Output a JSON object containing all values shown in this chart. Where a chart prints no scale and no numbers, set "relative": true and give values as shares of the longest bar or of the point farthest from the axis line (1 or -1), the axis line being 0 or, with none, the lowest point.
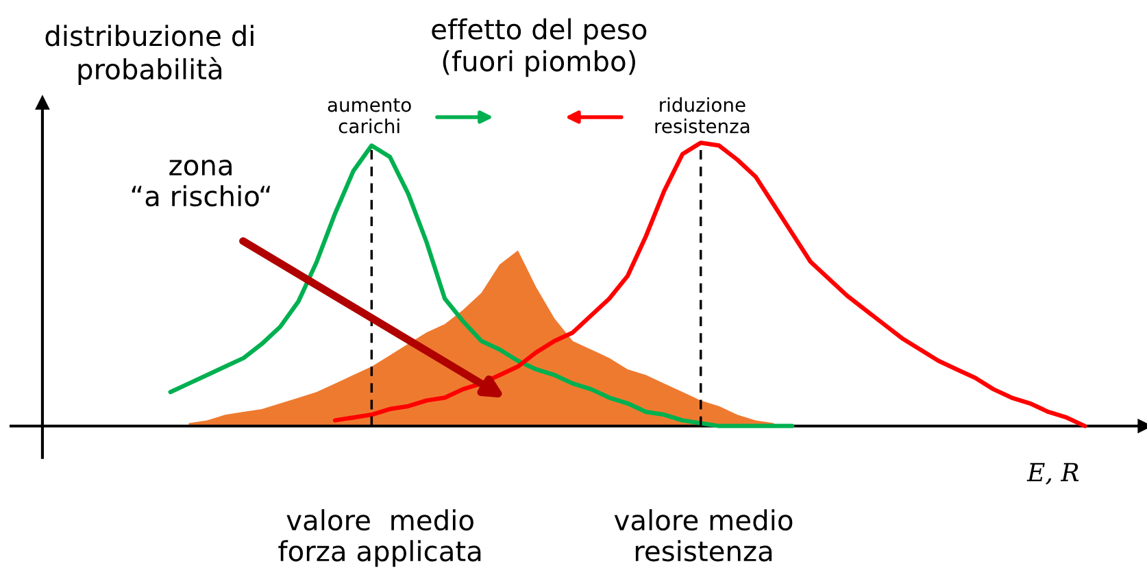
{
  "chart_data": {
    "type": "line",
    "relative": true,
    "tick_labels": false,
    "title": "effetto del peso\n(fuori piombo)",
    "ylabel": "distribuzione di\nprobabilità",
    "xlabel": "E, R",
    "annotations": [
      "aumento\ncarichi",
      "riduzione\nresistenza",
      "zona\n“a rischio“",
      "valore  medio\nforza applicata",
      "valore medio\nresistenza"
    ],
    "categories": [
      null,
      null,
      null,
      null,
      null,
      null,
      null,
      null,
      null,
      null,
      null,
      null,
      null,
      null,
      null,
      null,
      null,
      null,
      null,
      null,
      null,
      null,
      null,
      null,
      null,
      null,
      null,
      null,
      null,
      null,
      null,
      null,
      null,
      null,
      null,
      null,
      null,
      null,
      null,
      null,
      null,
      null,
      null,
      null,
      null,
      null,
      null,
      null,
      null,
      null,
      null,
      null,
      null,
      null,
      null,
      null,
      null,
      null,
      null,
      null,
      null
    ],
    "series": [
      {
        "type": "area",
        "color": "#ee7a30",
        "values": [
          null,
          null,
          null,
          null,
          null,
          null,
          null,
          null,
          0.01,
          0.02,
          0.04,
          0.05,
          0.06,
          0.08,
          0.1,
          0.12,
          0.15,
          0.18,
          0.21,
          0.25,
          0.29,
          0.33,
          0.36,
          0.41,
          0.47,
          0.57,
          0.62,
          0.49,
          0.38,
          0.3,
          0.27,
          0.24,
          0.2,
          0.18,
          0.15,
          0.12,
          0.09,
          0.07,
          0.04,
          0.02,
          0.01,
          null,
          null,
          null,
          null,
          null,
          null,
          null,
          null,
          null,
          null,
          null,
          null,
          null,
          null,
          null,
          null,
          null,
          null,
          null,
          null
        ]
      },
      {
        "color": "#00b050",
        "values": [
          null,
          null,
          null,
          null,
          null,
          null,
          null,
          0.12,
          0.15,
          0.18,
          0.21,
          0.24,
          0.29,
          0.35,
          0.44,
          0.58,
          0.75,
          0.9,
          0.99,
          0.95,
          0.82,
          0.65,
          0.45,
          0.37,
          0.3,
          0.27,
          0.23,
          0.2,
          0.18,
          0.15,
          0.13,
          0.1,
          0.08,
          0.05,
          0.04,
          0.02,
          0.01,
          0,
          0,
          0,
          0,
          0,
          null,
          null,
          null,
          null,
          null,
          null,
          null,
          null,
          null,
          null,
          null,
          null,
          null,
          null,
          null,
          null,
          null,
          null,
          null
        ]
      },
      {
        "color": "#ff0000",
        "values": [
          null,
          null,
          null,
          null,
          null,
          null,
          null,
          null,
          null,
          null,
          null,
          null,
          null,
          null,
          null,
          null,
          0.02,
          0.03,
          0.04,
          0.06,
          0.07,
          0.09,
          0.1,
          0.13,
          0.15,
          0.18,
          0.21,
          0.26,
          0.3,
          0.33,
          0.39,
          0.45,
          0.53,
          0.67,
          0.83,
          0.96,
          1,
          0.99,
          0.94,
          0.88,
          0.78,
          0.68,
          0.58,
          0.52,
          0.46,
          0.41,
          0.36,
          0.31,
          0.27,
          0.23,
          0.2,
          0.17,
          0.13,
          0.1,
          0.08,
          0.05,
          0.03,
          0,
          null,
          null,
          null
        ]
      }
    ]
  }
}
